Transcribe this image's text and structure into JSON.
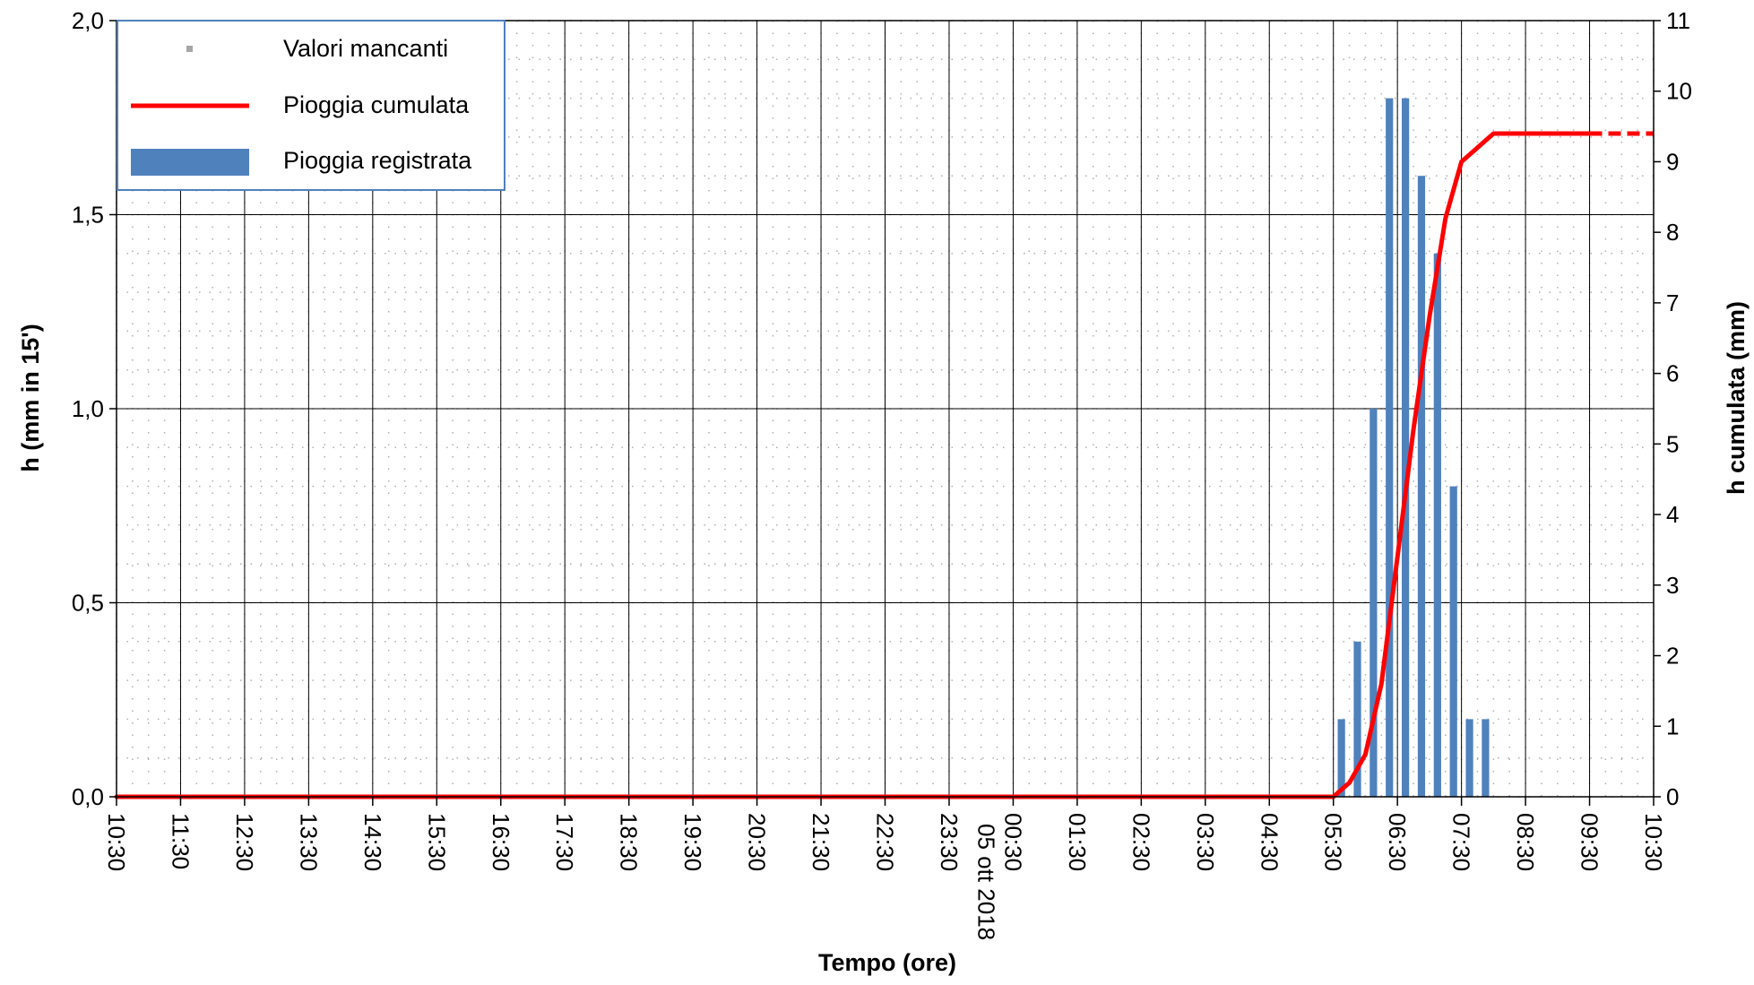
{
  "chart_data": {
    "type": "bar+line",
    "xlabel": "Tempo (ore)",
    "ylabel_left": "h (mm in 15')",
    "ylabel_right": "h cumulata (mm)",
    "ylim_left": [
      0,
      2.0
    ],
    "ylim_right": [
      0,
      11
    ],
    "yticks_left": [
      "0,0",
      "0,5",
      "1,0",
      "1,5",
      "2,0"
    ],
    "yticks_left_values": [
      0,
      0.5,
      1.0,
      1.5,
      2.0
    ],
    "yticks_right": [
      "0",
      "1",
      "2",
      "3",
      "4",
      "5",
      "6",
      "7",
      "8",
      "9",
      "10",
      "11"
    ],
    "yticks_right_values": [
      0,
      1,
      2,
      3,
      4,
      5,
      6,
      7,
      8,
      9,
      10,
      11
    ],
    "x_start": "2018-10-04 10:30",
    "x_end": "2018-10-05 10:30",
    "xtick_times": [
      "2018-10-04 10:30",
      "2018-10-04 11:30",
      "2018-10-04 12:30",
      "2018-10-04 13:30",
      "2018-10-04 14:30",
      "2018-10-04 15:30",
      "2018-10-04 16:30",
      "2018-10-04 17:30",
      "2018-10-04 18:30",
      "2018-10-04 19:30",
      "2018-10-04 20:30",
      "2018-10-04 21:30",
      "2018-10-04 22:30",
      "2018-10-04 23:30",
      "2018-10-05 00:30",
      "2018-10-05 01:30",
      "2018-10-05 02:30",
      "2018-10-05 03:30",
      "2018-10-05 04:30",
      "2018-10-05 05:30",
      "2018-10-05 06:30",
      "2018-10-05 07:30",
      "2018-10-05 08:30",
      "2018-10-05 09:30",
      "2018-10-05 10:30"
    ],
    "xtick_labels": [
      "10:30",
      "11:30",
      "12:30",
      "13:30",
      "14:30",
      "15:30",
      "16:30",
      "17:30",
      "18:30",
      "19:30",
      "20:30",
      "21:30",
      "22:30",
      "23:30",
      "00:30",
      "01:30",
      "02:30",
      "03:30",
      "04:30",
      "05:30",
      "06:30",
      "07:30",
      "08:30",
      "09:30",
      "10:30"
    ],
    "date_label": "05 ott 2018",
    "grid": true,
    "legend_position": "top-left",
    "legend": [
      {
        "label": "Valori mancanti",
        "kind": "marker",
        "color": "#a6a6a6"
      },
      {
        "label": "Pioggia cumulata",
        "kind": "line",
        "color": "#ff0000"
      },
      {
        "label": "Pioggia registrata",
        "kind": "bar",
        "color": "#4f81bd"
      }
    ],
    "series": [
      {
        "name": "Pioggia registrata",
        "type": "bar",
        "axis": "left",
        "color": "#4f81bd",
        "points": [
          {
            "x": "2018-10-05 05:45",
            "y": 0.2
          },
          {
            "x": "2018-10-05 06:00",
            "y": 0.4
          },
          {
            "x": "2018-10-05 06:15",
            "y": 1.0
          },
          {
            "x": "2018-10-05 06:30",
            "y": 1.8
          },
          {
            "x": "2018-10-05 06:45",
            "y": 1.8
          },
          {
            "x": "2018-10-05 07:00",
            "y": 1.6
          },
          {
            "x": "2018-10-05 07:15",
            "y": 1.4
          },
          {
            "x": "2018-10-05 07:30",
            "y": 0.8
          },
          {
            "x": "2018-10-05 07:45",
            "y": 0.2
          },
          {
            "x": "2018-10-05 08:00",
            "y": 0.2
          }
        ]
      },
      {
        "name": "Pioggia cumulata",
        "type": "line",
        "axis": "right",
        "color": "#ff0000",
        "points": [
          {
            "x": "2018-10-04 10:30",
            "y": 0
          },
          {
            "x": "2018-10-05 05:30",
            "y": 0
          },
          {
            "x": "2018-10-05 05:45",
            "y": 0.2
          },
          {
            "x": "2018-10-05 06:00",
            "y": 0.6
          },
          {
            "x": "2018-10-05 06:15",
            "y": 1.6
          },
          {
            "x": "2018-10-05 06:30",
            "y": 3.4
          },
          {
            "x": "2018-10-05 06:45",
            "y": 5.2
          },
          {
            "x": "2018-10-05 07:00",
            "y": 6.8
          },
          {
            "x": "2018-10-05 07:15",
            "y": 8.2
          },
          {
            "x": "2018-10-05 07:30",
            "y": 9.0
          },
          {
            "x": "2018-10-05 07:45",
            "y": 9.2
          },
          {
            "x": "2018-10-05 08:00",
            "y": 9.4
          },
          {
            "x": "2018-10-05 09:30",
            "y": 9.4
          }
        ],
        "missing_segment": [
          {
            "x": "2018-10-05 09:30",
            "y": 9.4
          },
          {
            "x": "2018-10-05 10:30",
            "y": 9.4
          }
        ]
      }
    ],
    "colors": {
      "bar": "#4f81bd",
      "line": "#ff0000",
      "missing": "#a6a6a6",
      "legend_border": "#4f81bd"
    }
  }
}
